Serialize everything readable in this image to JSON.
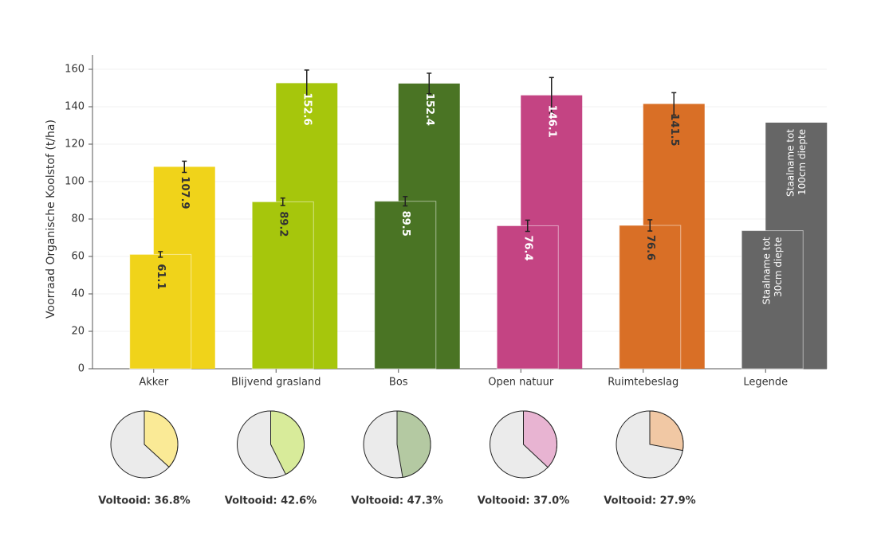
{
  "chart_data": [
    {
      "type": "bar",
      "y_label": "Voorraad Organische Koolstof (t/ha)",
      "categories": [
        "Akker",
        "Blijvend grasland",
        "Bos",
        "Open natuur",
        "Ruimtebeslag",
        "Legende"
      ],
      "colors": [
        "#f0d31a",
        "#a6c60c",
        "#4a7424",
        "#c44483",
        "#d96f26",
        "#666666"
      ],
      "series": [
        {
          "name": "Staalname tot 30cm diepte",
          "values": [
            61.1,
            89.2,
            89.5,
            76.4,
            76.6,
            73.8
          ],
          "errors": [
            1.5,
            2,
            2.5,
            3,
            3,
            null
          ],
          "label_colors": [
            "#333333",
            "#333333",
            "#ffffff",
            "#ffffff",
            "#333333",
            "#ffffff"
          ]
        },
        {
          "name": "Staalname tot 100cm diepte",
          "values": [
            107.9,
            152.6,
            152.4,
            146.1,
            141.5,
            131.5
          ],
          "errors": [
            3,
            7,
            5.5,
            9.5,
            6,
            null
          ],
          "label_colors": [
            "#333333",
            "#ffffff",
            "#ffffff",
            "#ffffff",
            "#333333",
            "#ffffff"
          ]
        }
      ],
      "ylim": [
        0,
        160
      ],
      "yticks": [
        0,
        20,
        40,
        60,
        80,
        100,
        120,
        140,
        160
      ],
      "grid": true
    },
    {
      "type": "pie",
      "categories": [
        "Akker",
        "Blijvend grasland",
        "Bos",
        "Open natuur",
        "Ruimtebeslag"
      ],
      "values": [
        36.8,
        42.6,
        47.3,
        37.0,
        27.9
      ],
      "value_labels": [
        "Voltooid: 36.8%",
        "Voltooid: 42.6%",
        "Voltooid: 47.3%",
        "Voltooid: 37.0%",
        "Voltooid: 27.9%"
      ],
      "colors": [
        "#faea96",
        "#d8eb9a",
        "#b4c9a2",
        "#e8b4d2",
        "#f1c8a4"
      ],
      "rest_color": "#ebebeb",
      "ylim": [
        0,
        100
      ]
    }
  ]
}
